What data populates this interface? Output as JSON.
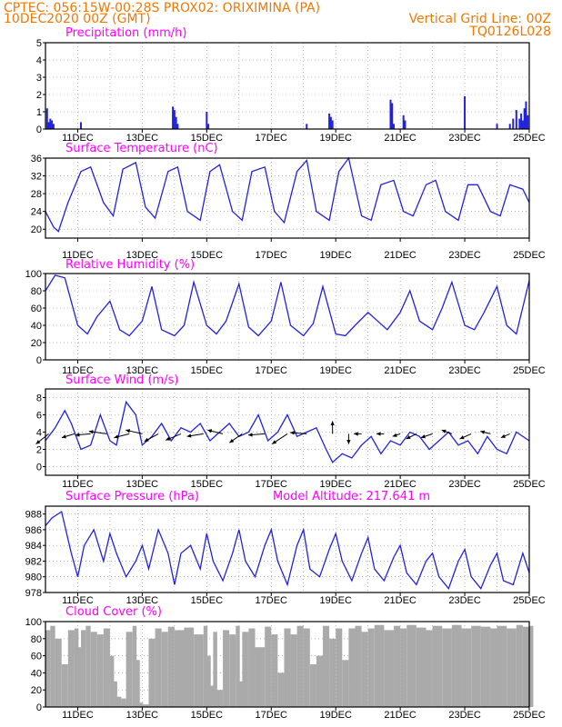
{
  "header": {
    "line1_left": "CPTEC:   056:15W-00:28S   PROX02: ORIXIMINA (PA)",
    "line2_left": "10DEC2020 00Z (GMT)",
    "line2_right": "Vertical Grid Line: 00Z",
    "line3_right": "TQ0126L028"
  },
  "colors": {
    "header": "#f07800",
    "title": "#ff00ff",
    "line": "#2222dd",
    "cloud": "#aaaaaa",
    "grid": "#888888"
  },
  "x_axis": {
    "start": "10DEC2020 00Z",
    "end": "25DEC2020 00Z",
    "tick_labels": [
      "11DEC",
      "13DEC",
      "15DEC",
      "17DEC",
      "19DEC",
      "21DEC",
      "23DEC",
      "25DEC"
    ]
  },
  "chart_data": [
    {
      "type": "bar",
      "title": "Precipitation (mm/h)",
      "ylim": [
        0,
        5
      ],
      "yticks": [
        "5",
        "4",
        "3",
        "2",
        "1",
        "0"
      ],
      "grid": true,
      "series": [
        {
          "points": [
            [
              0.05,
              1.2
            ],
            [
              0.1,
              0.4
            ],
            [
              0.15,
              0.6
            ],
            [
              0.2,
              0.5
            ],
            [
              0.25,
              0.3
            ],
            [
              1.1,
              0.4
            ],
            [
              3.95,
              1.3
            ],
            [
              4.0,
              1.1
            ],
            [
              4.05,
              0.7
            ],
            [
              4.1,
              0.3
            ],
            [
              5.0,
              1.0
            ],
            [
              5.05,
              0.3
            ],
            [
              8.1,
              0.3
            ],
            [
              8.8,
              0.9
            ],
            [
              8.85,
              0.7
            ],
            [
              8.9,
              0.5
            ],
            [
              10.7,
              1.7
            ],
            [
              10.75,
              1.5
            ],
            [
              10.8,
              0.3
            ],
            [
              11.1,
              0.8
            ],
            [
              11.15,
              0.5
            ],
            [
              13.0,
              1.9
            ],
            [
              14.0,
              0.3
            ],
            [
              14.4,
              0.3
            ],
            [
              14.5,
              0.6
            ],
            [
              14.6,
              1.1
            ],
            [
              14.7,
              0.6
            ],
            [
              14.75,
              0.9
            ],
            [
              14.8,
              0.5
            ],
            [
              14.85,
              1.2
            ],
            [
              14.9,
              1.6
            ],
            [
              14.95,
              0.8
            ]
          ]
        }
      ]
    },
    {
      "type": "line",
      "title": "Surface Temperature (nC)",
      "ylim": [
        18,
        36
      ],
      "yticks": [
        "36",
        "32",
        "28",
        "24",
        "20"
      ],
      "grid": true,
      "series": [
        {
          "x": [
            0,
            0.25,
            0.4,
            0.7,
            1.1,
            1.4,
            1.8,
            2.1,
            2.4,
            2.8,
            3.1,
            3.4,
            3.8,
            4.1,
            4.4,
            4.8,
            5.1,
            5.4,
            5.8,
            6.1,
            6.4,
            6.8,
            7.1,
            7.4,
            7.8,
            8.1,
            8.4,
            8.8,
            9.1,
            9.4,
            9.8,
            10.1,
            10.4,
            10.8,
            11.1,
            11.4,
            11.8,
            12.1,
            12.4,
            12.8,
            13.1,
            13.4,
            13.8,
            14.1,
            14.4,
            14.8,
            15.0
          ],
          "values": [
            24,
            20.5,
            19.5,
            26,
            33,
            34,
            26,
            23,
            33.5,
            35,
            25,
            22.5,
            33,
            34,
            24,
            22,
            33,
            34.5,
            24,
            22,
            33,
            34,
            24,
            21.5,
            33,
            35.5,
            24,
            22,
            33,
            36,
            23,
            22,
            30,
            31,
            24,
            23,
            30,
            31,
            24,
            22,
            30,
            30,
            24,
            23,
            30,
            29,
            26
          ]
        }
      ]
    },
    {
      "type": "line",
      "title": "Relative Humidity (%)",
      "ylim": [
        0,
        100
      ],
      "yticks": [
        "100",
        "80",
        "60",
        "40",
        "20",
        "0"
      ],
      "grid": true,
      "series": [
        {
          "x": [
            0,
            0.3,
            0.6,
            1.0,
            1.3,
            1.6,
            2.0,
            2.3,
            2.6,
            3.0,
            3.3,
            3.6,
            4.0,
            4.3,
            4.6,
            5.0,
            5.3,
            5.6,
            6.0,
            6.3,
            6.6,
            7.0,
            7.3,
            7.6,
            8.0,
            8.3,
            8.6,
            9.0,
            9.3,
            9.6,
            10.0,
            10.3,
            10.6,
            11.0,
            11.3,
            11.6,
            12.0,
            12.3,
            12.6,
            13.0,
            13.3,
            13.6,
            14.0,
            14.3,
            14.6,
            15.0
          ],
          "values": [
            80,
            98,
            95,
            40,
            30,
            50,
            68,
            35,
            28,
            45,
            85,
            35,
            28,
            40,
            90,
            40,
            30,
            45,
            88,
            38,
            28,
            45,
            90,
            40,
            28,
            42,
            85,
            30,
            28,
            40,
            55,
            45,
            35,
            55,
            80,
            45,
            35,
            60,
            90,
            40,
            35,
            55,
            85,
            40,
            30,
            92
          ]
        }
      ]
    },
    {
      "type": "line",
      "title": "Surface Wind (m/s)",
      "ylim": [
        -1,
        9
      ],
      "yticks": [
        "8",
        "6",
        "4",
        "2",
        "0"
      ],
      "grid": true,
      "series": [
        {
          "x": [
            0,
            0.3,
            0.6,
            0.8,
            1.1,
            1.4,
            1.7,
            2.0,
            2.2,
            2.5,
            2.8,
            3.0,
            3.3,
            3.6,
            3.9,
            4.2,
            4.5,
            4.8,
            5.1,
            5.4,
            5.7,
            6.0,
            6.3,
            6.6,
            6.9,
            7.2,
            7.5,
            7.8,
            8.1,
            8.4,
            8.7,
            8.9,
            9.2,
            9.5,
            9.8,
            10.1,
            10.4,
            10.7,
            11.0,
            11.3,
            11.6,
            11.9,
            12.2,
            12.5,
            12.8,
            13.1,
            13.4,
            13.7,
            14.0,
            14.3,
            14.6,
            15.0
          ],
          "values": [
            3,
            4.5,
            6.5,
            5,
            2,
            2.5,
            6,
            3,
            2.5,
            7.5,
            6,
            2.5,
            3.5,
            5,
            3,
            4.5,
            4,
            5,
            3,
            4,
            5,
            3.5,
            4,
            6,
            3,
            4,
            6,
            3.5,
            4,
            4.5,
            2,
            0.5,
            1.5,
            1,
            2.5,
            3.5,
            1.5,
            3,
            2.5,
            4,
            3.5,
            2,
            3,
            4,
            2.5,
            3,
            1.5,
            3.5,
            2,
            1.5,
            4,
            3
          ]
        }
      ],
      "arrows": [
        {
          "x": 0.1,
          "u": -1,
          "v": -0.8
        },
        {
          "x": 0.9,
          "u": -1,
          "v": -0.3
        },
        {
          "x": 1.4,
          "u": -1.2,
          "v": -0.1
        },
        {
          "x": 1.9,
          "u": -1.4,
          "v": 0.2
        },
        {
          "x": 2.6,
          "u": -1.2,
          "v": -0.3
        },
        {
          "x": 3.0,
          "u": -1.3,
          "v": 0.3
        },
        {
          "x": 3.5,
          "u": -1.1,
          "v": -0.6
        },
        {
          "x": 4.2,
          "u": -1.2,
          "v": -0.5
        },
        {
          "x": 4.9,
          "u": -1.3,
          "v": -0.2
        },
        {
          "x": 5.5,
          "u": -1.2,
          "v": 0.3
        },
        {
          "x": 6.1,
          "u": -1.0,
          "v": -0.7
        },
        {
          "x": 6.8,
          "u": -1.3,
          "v": -0.1
        },
        {
          "x": 7.5,
          "u": -1.2,
          "v": -0.8
        },
        {
          "x": 8.1,
          "u": -1.3,
          "v": 0.1
        },
        {
          "x": 8.9,
          "u": 0,
          "v": 1
        },
        {
          "x": 9.4,
          "u": 0,
          "v": -0.8
        },
        {
          "x": 9.8,
          "u": -0.6,
          "v": 0
        },
        {
          "x": 10.5,
          "u": -0.6,
          "v": 0
        },
        {
          "x": 11.0,
          "u": -0.6,
          "v": -0.2
        },
        {
          "x": 11.5,
          "u": -0.8,
          "v": -0.4
        },
        {
          "x": 12.0,
          "u": -0.9,
          "v": -0.3
        },
        {
          "x": 12.6,
          "u": -0.8,
          "v": 0.3
        },
        {
          "x": 13.2,
          "u": -0.9,
          "v": -0.4
        },
        {
          "x": 13.8,
          "u": -0.8,
          "v": 0.2
        },
        {
          "x": 14.4,
          "u": -0.7,
          "v": -0.3
        }
      ]
    },
    {
      "type": "line",
      "title": "Surface Pressure (hPa)",
      "annotation": "Model Altitude: 217.641  m",
      "ylim": [
        978,
        989
      ],
      "yticks": [
        "988",
        "986",
        "984",
        "982",
        "980",
        "978"
      ],
      "grid": true,
      "series": [
        {
          "x": [
            0,
            0.2,
            0.5,
            0.8,
            1.0,
            1.2,
            1.5,
            1.8,
            2.0,
            2.2,
            2.5,
            2.8,
            3.0,
            3.2,
            3.5,
            3.8,
            4.0,
            4.2,
            4.5,
            4.8,
            5.0,
            5.2,
            5.5,
            5.8,
            6.0,
            6.2,
            6.5,
            6.8,
            7.0,
            7.2,
            7.5,
            7.8,
            8.0,
            8.2,
            8.5,
            8.8,
            9.0,
            9.2,
            9.5,
            9.8,
            10.0,
            10.2,
            10.5,
            10.8,
            11.0,
            11.2,
            11.5,
            11.8,
            12.0,
            12.2,
            12.5,
            12.8,
            13.0,
            13.2,
            13.5,
            13.8,
            14.0,
            14.2,
            14.5,
            14.8,
            15.0
          ],
          "values": [
            986.5,
            987.5,
            988.3,
            983,
            980,
            984,
            986,
            982,
            985.5,
            983,
            980,
            982,
            984,
            981,
            986,
            983,
            979,
            983,
            984,
            981,
            985.5,
            982,
            979.5,
            983,
            986,
            982,
            980,
            984,
            986,
            982,
            979,
            984,
            986,
            981,
            980,
            983.5,
            985.5,
            982,
            979.5,
            983,
            985,
            981,
            979.5,
            982.5,
            984,
            980.5,
            979,
            982,
            983,
            980,
            978.5,
            982,
            983.5,
            980,
            978.5,
            981.5,
            983,
            979.5,
            979,
            983,
            980.5
          ]
        }
      ]
    },
    {
      "type": "area",
      "title": "Cloud Cover (%)",
      "ylim": [
        0,
        100
      ],
      "yticks": [
        "100",
        "80",
        "60",
        "40",
        "20",
        "0"
      ],
      "grid": true,
      "series": [
        {
          "x": [
            0,
            0.15,
            0.3,
            0.5,
            0.7,
            0.9,
            1.0,
            1.1,
            1.25,
            1.4,
            1.6,
            1.8,
            2.0,
            2.1,
            2.2,
            2.35,
            2.5,
            2.7,
            2.8,
            2.9,
            3.0,
            3.2,
            3.4,
            3.6,
            3.8,
            4.0,
            4.3,
            4.6,
            4.9,
            5.0,
            5.1,
            5.2,
            5.3,
            5.5,
            5.7,
            5.9,
            6.0,
            6.1,
            6.3,
            6.5,
            6.8,
            7.0,
            7.2,
            7.4,
            7.6,
            7.8,
            8.0,
            8.2,
            8.4,
            8.6,
            8.8,
            9.0,
            9.2,
            9.4,
            9.6,
            9.8,
            10.0,
            10.2,
            10.5,
            10.8,
            11.0,
            11.2,
            11.5,
            11.8,
            12.0,
            12.3,
            12.6,
            12.9,
            13.2,
            13.5,
            13.8,
            14.0,
            14.3,
            14.6,
            14.8,
            15.0
          ],
          "values": [
            90,
            95,
            80,
            50,
            90,
            92,
            70,
            90,
            95,
            88,
            85,
            92,
            60,
            30,
            12,
            10,
            88,
            95,
            55,
            5,
            3,
            80,
            92,
            88,
            94,
            90,
            93,
            85,
            95,
            60,
            25,
            88,
            20,
            90,
            85,
            95,
            30,
            88,
            92,
            70,
            94,
            85,
            40,
            92,
            85,
            95,
            92,
            50,
            60,
            95,
            80,
            92,
            55,
            92,
            95,
            88,
            92,
            96,
            90,
            95,
            92,
            96,
            93,
            90,
            95,
            92,
            96,
            92,
            95,
            94,
            92,
            95,
            92,
            96,
            94,
            95
          ]
        }
      ]
    }
  ]
}
